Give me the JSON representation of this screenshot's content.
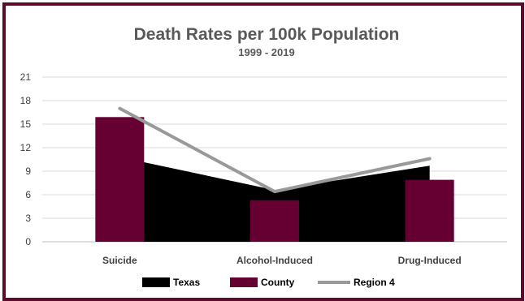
{
  "chart_data": {
    "type": "bar",
    "title": "Death Rates per 100k Population",
    "subtitle": "1999 - 2019",
    "categories": [
      "Suicide",
      "Alcohol-Induced",
      "Drug-Induced"
    ],
    "ylim": [
      0,
      21
    ],
    "yticks": [
      0,
      3,
      6,
      9,
      12,
      15,
      18,
      21
    ],
    "grid": true,
    "legend_position": "bottom",
    "series": [
      {
        "name": "Texas",
        "type": "area",
        "color": "#000000",
        "values": [
          10.8,
          6.6,
          9.7
        ]
      },
      {
        "name": "County",
        "type": "bar",
        "color": "#660033",
        "values": [
          15.9,
          5.3,
          7.9
        ]
      },
      {
        "name": "Region 4",
        "type": "line",
        "color": "#999999",
        "values": [
          17.0,
          6.4,
          10.6
        ]
      }
    ]
  }
}
